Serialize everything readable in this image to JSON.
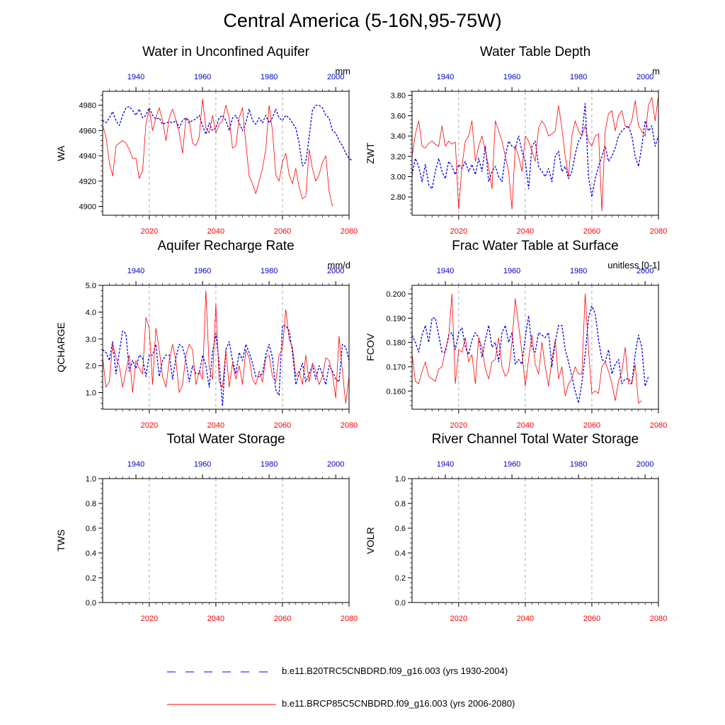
{
  "page": {
    "title": "Central America (5-16N,95-75W)"
  },
  "colors": {
    "historical": "#0000ee",
    "future": "#ff0000",
    "top_axis": "#0000cc",
    "bottom_axis": "#ff0000",
    "guide": "#999999"
  },
  "legend": {
    "items": [
      {
        "label": "b.e11.B20TRC5CNBDRD.f09_g16.003 (yrs 1930-2004)",
        "color": "#0000ee",
        "style": "dashed"
      },
      {
        "label": "b.e11.BRCP85C5CNBDRD.f09_g16.003 (yrs 2006-2080)",
        "color": "#ff0000",
        "style": "solid"
      }
    ]
  },
  "chart_data": [
    {
      "type": "line",
      "title": "Water in Unconfined Aquifer",
      "ylabel": "WA",
      "units": "mm",
      "xlim_bottom": [
        2006,
        2080
      ],
      "xlim_top": [
        1930,
        2004
      ],
      "ylim": [
        4893,
        4991
      ],
      "yticks": [
        4900,
        4920,
        4940,
        4960,
        4980
      ],
      "ytick_labels": [
        "4900",
        "4920",
        "4940",
        "4960",
        "4980"
      ],
      "xticks_bottom": [
        2020,
        2040,
        2060,
        2080
      ],
      "xticks_top": [
        1940,
        1960,
        1980,
        2000
      ],
      "guides": [
        2020,
        2040,
        2060
      ],
      "series": [
        {
          "role": "historical",
          "x_axis": "top",
          "x_start": 1930,
          "values": [
            4968,
            4966,
            4970,
            4975,
            4968,
            4964,
            4972,
            4978,
            4979,
            4976,
            4972,
            4977,
            4970,
            4972,
            4978,
            4972,
            4969,
            4970,
            4965,
            4966,
            4967,
            4966,
            4968,
            4962,
            4968,
            4970,
            4966,
            4968,
            4969,
            4972,
            4964,
            4957,
            4966,
            4960,
            4962,
            4970,
            4972,
            4968,
            4960,
            4970,
            4972,
            4966,
            4960,
            4966,
            4977,
            4968,
            4965,
            4970,
            4966,
            4972,
            4966,
            4970,
            4977,
            4970,
            4968,
            4972,
            4970,
            4966,
            4962,
            4950,
            4932,
            4935,
            4955,
            4976,
            4980,
            4980,
            4978,
            4972,
            4970,
            4960,
            4958,
            4952,
            4948,
            4942,
            4938,
            4936
          ]
        },
        {
          "role": "future",
          "x_axis": "bottom",
          "x_start": 2006,
          "values": [
            4964,
            4955,
            4935,
            4924,
            4948,
            4950,
            4952,
            4950,
            4945,
            4938,
            4938,
            4922,
            4928,
            4965,
            4977,
            4960,
            4970,
            4978,
            4968,
            4952,
            4970,
            4977,
            4968,
            4958,
            4942,
            4970,
            4968,
            4950,
            4948,
            4955,
            4985,
            4962,
            4958,
            4972,
            4958,
            4965,
            4968,
            4980,
            4970,
            4946,
            4948,
            4970,
            4978,
            4950,
            4924,
            4918,
            4910,
            4920,
            4930,
            4945,
            4980,
            4960,
            4925,
            4920,
            4935,
            4942,
            4925,
            4918,
            4930,
            4915,
            4906,
            4908,
            4945,
            4930,
            4920,
            4925,
            4935,
            4940,
            4912,
            4900
          ]
        }
      ]
    },
    {
      "type": "line",
      "title": "Water Table Depth",
      "ylabel": "ZWT",
      "units": "m",
      "xlim_bottom": [
        2006,
        2080
      ],
      "xlim_top": [
        1930,
        2004
      ],
      "ylim": [
        2.62,
        3.84
      ],
      "yticks": [
        2.8,
        3.0,
        3.2,
        3.4,
        3.6,
        3.8
      ],
      "ytick_labels": [
        "2.80",
        "3.00",
        "3.20",
        "3.40",
        "3.60",
        "3.80"
      ],
      "xticks_bottom": [
        2020,
        2040,
        2060,
        2080
      ],
      "xticks_top": [
        1940,
        1960,
        1980,
        2000
      ],
      "guides": [
        2020,
        2040,
        2060
      ],
      "series": [
        {
          "role": "historical",
          "x_axis": "top",
          "x_start": 1930,
          "values": [
            3.02,
            3.18,
            3.1,
            2.95,
            3.12,
            2.92,
            2.88,
            3.05,
            3.18,
            3.05,
            2.98,
            3.15,
            3.1,
            3.02,
            3.12,
            3.08,
            3.15,
            3.05,
            3.12,
            3.02,
            3.18,
            3.05,
            3.3,
            2.95,
            3.05,
            3.1,
            3.0,
            2.95,
            3.2,
            3.35,
            3.3,
            3.28,
            3.4,
            3.25,
            3.15,
            2.88,
            3.3,
            3.35,
            3.1,
            3.05,
            3.0,
            3.08,
            2.95,
            3.2,
            3.25,
            3.05,
            3.1,
            2.98,
            3.05,
            3.22,
            3.35,
            3.4,
            3.72,
            3.0,
            2.8,
            2.98,
            3.1,
            3.2,
            3.3,
            3.15,
            3.2,
            3.28,
            3.4,
            3.45,
            3.48,
            3.5,
            3.4,
            3.2,
            3.1,
            3.3,
            3.55,
            3.45,
            3.5,
            3.3,
            3.4
          ]
        },
        {
          "role": "future",
          "x_axis": "bottom",
          "x_start": 2006,
          "values": [
            3.2,
            3.42,
            3.55,
            3.3,
            3.28,
            3.33,
            3.35,
            3.32,
            3.3,
            3.5,
            3.3,
            3.35,
            3.32,
            3.34,
            2.68,
            3.1,
            3.35,
            3.4,
            3.55,
            3.15,
            3.3,
            3.4,
            3.25,
            3.1,
            2.88,
            3.55,
            3.45,
            3.35,
            3.2,
            3.05,
            2.68,
            3.3,
            3.2,
            3.05,
            3.4,
            3.35,
            3.25,
            3.15,
            3.48,
            3.55,
            3.5,
            3.4,
            3.42,
            3.45,
            3.7,
            3.48,
            3.2,
            3.0,
            3.4,
            3.55,
            3.45,
            3.4,
            3.5,
            3.35,
            3.3,
            3.4,
            3.42,
            2.66,
            3.45,
            3.62,
            3.65,
            3.45,
            3.6,
            3.65,
            3.5,
            3.48,
            3.55,
            3.75,
            3.5,
            3.45,
            3.4,
            3.7,
            3.78,
            3.55,
            3.8
          ]
        }
      ]
    },
    {
      "type": "line",
      "title": "Aquifer Recharge Rate",
      "ylabel": "QCHARGE",
      "units": "mm/d",
      "xlim_bottom": [
        2006,
        2080
      ],
      "xlim_top": [
        1930,
        2004
      ],
      "ylim": [
        0.38,
        5.0
      ],
      "yticks": [
        1.0,
        2.0,
        3.0,
        4.0,
        5.0
      ],
      "ytick_labels": [
        "1.0",
        "2.0",
        "3.0",
        "4.0",
        "5.0"
      ],
      "xticks_bottom": [
        2020,
        2040,
        2060,
        2080
      ],
      "xticks_top": [
        1940,
        1960,
        1980,
        2000
      ],
      "guides": [
        2020,
        2040,
        2060
      ],
      "series": [
        {
          "role": "historical",
          "x_axis": "top",
          "x_start": 1930,
          "values": [
            2.6,
            2.5,
            2.2,
            2.9,
            1.7,
            2.5,
            3.3,
            3.2,
            1.8,
            2.2,
            1.9,
            2.4,
            2.3,
            1.6,
            2.4,
            2.4,
            2.8,
            1.6,
            2.2,
            2.4,
            2.4,
            1.5,
            2.3,
            2.8,
            2.7,
            2.2,
            1.4,
            2.0,
            1.7,
            1.7,
            2.4,
            2.0,
            1.2,
            2.5,
            3.2,
            2.1,
            0.5,
            2.6,
            2.9,
            2.2,
            1.7,
            2.5,
            2.2,
            2.8,
            2.5,
            2.1,
            1.6,
            1.6,
            1.7,
            2.4,
            2.8,
            2.3,
            1.1,
            0.9,
            3.5,
            3.5,
            3.3,
            2.5,
            1.3,
            1.7,
            2.1,
            1.4,
            1.7,
            2.0,
            1.5,
            2.0,
            1.7,
            1.3,
            2.0,
            1.8,
            1.5,
            1.4,
            2.8,
            2.7,
            2.2
          ]
        },
        {
          "role": "future",
          "x_axis": "bottom",
          "x_start": 2006,
          "values": [
            2.3,
            1.2,
            1.4,
            2.8,
            2.3,
            2.0,
            1.2,
            1.8,
            2.4,
            1.0,
            2.2,
            1.9,
            1.7,
            3.8,
            3.4,
            1.3,
            3.4,
            2.6,
            1.6,
            1.2,
            2.2,
            2.8,
            2.2,
            1.0,
            1.3,
            2.4,
            2.8,
            2.6,
            1.3,
            1.8,
            1.5,
            4.8,
            1.9,
            1.5,
            4.3,
            1.4,
            1.2,
            2.6,
            1.2,
            2.1,
            1.5,
            2.0,
            1.3,
            2.6,
            2.3,
            1.5,
            1.3,
            1.8,
            1.4,
            2.3,
            2.4,
            1.6,
            1.4,
            2.4,
            2.6,
            4.1,
            3.0,
            2.7,
            1.6,
            1.8,
            1.3,
            2.4,
            1.4,
            2.1,
            1.8,
            1.3,
            1.6,
            2.3,
            2.2,
            1.7,
            0.8,
            3.1,
            1.8,
            0.6,
            1.6
          ]
        }
      ]
    },
    {
      "type": "line",
      "title": "Frac Water Table at Surface",
      "ylabel": "FCOV",
      "units": "unitless [0-1]",
      "xlim_bottom": [
        2006,
        2080
      ],
      "xlim_top": [
        1930,
        2004
      ],
      "ylim": [
        0.1525,
        0.2035
      ],
      "yticks": [
        0.16,
        0.17,
        0.18,
        0.19,
        0.2
      ],
      "ytick_labels": [
        "0.160",
        "0.170",
        "0.180",
        "0.190",
        "0.200"
      ],
      "xticks_bottom": [
        2020,
        2040,
        2060,
        2080
      ],
      "xticks_top": [
        1940,
        1960,
        1980,
        2000
      ],
      "guides": [
        2020,
        2040,
        2060
      ],
      "series": [
        {
          "role": "historical",
          "x_axis": "top",
          "x_start": 1930,
          "values": [
            0.183,
            0.18,
            0.176,
            0.183,
            0.187,
            0.18,
            0.19,
            0.19,
            0.183,
            0.176,
            0.176,
            0.183,
            0.184,
            0.177,
            0.184,
            0.186,
            0.178,
            0.175,
            0.181,
            0.184,
            0.182,
            0.174,
            0.181,
            0.187,
            0.178,
            0.18,
            0.172,
            0.184,
            0.187,
            0.18,
            0.184,
            0.171,
            0.173,
            0.171,
            0.182,
            0.191,
            0.178,
            0.176,
            0.184,
            0.183,
            0.182,
            0.184,
            0.17,
            0.18,
            0.187,
            0.187,
            0.177,
            0.172,
            0.166,
            0.16,
            0.155,
            0.163,
            0.175,
            0.19,
            0.195,
            0.192,
            0.181,
            0.173,
            0.172,
            0.177,
            0.167,
            0.171,
            0.173,
            0.163,
            0.165,
            0.165,
            0.163,
            0.175,
            0.183,
            0.178,
            0.162,
            0.166
          ]
        },
        {
          "role": "future",
          "x_axis": "bottom",
          "x_start": 2006,
          "values": [
            0.175,
            0.164,
            0.163,
            0.168,
            0.172,
            0.166,
            0.165,
            0.164,
            0.169,
            0.17,
            0.177,
            0.182,
            0.2,
            0.163,
            0.177,
            0.176,
            0.182,
            0.172,
            0.175,
            0.163,
            0.182,
            0.178,
            0.169,
            0.165,
            0.172,
            0.173,
            0.182,
            0.17,
            0.166,
            0.168,
            0.18,
            0.198,
            0.187,
            0.176,
            0.162,
            0.173,
            0.183,
            0.171,
            0.167,
            0.18,
            0.17,
            0.162,
            0.173,
            0.181,
            0.165,
            0.17,
            0.158,
            0.163,
            0.165,
            0.17,
            0.167,
            0.167,
            0.2,
            0.177,
            0.159,
            0.16,
            0.159,
            0.17,
            0.172,
            0.168,
            0.163,
            0.156,
            0.164,
            0.168,
            0.178,
            0.163,
            0.163,
            0.171,
            0.155,
            0.156
          ]
        }
      ]
    },
    {
      "type": "line",
      "title": "Total Water Storage",
      "ylabel": "TWS",
      "units": "",
      "xlim_bottom": [
        2006,
        2080
      ],
      "xlim_top": [
        1930,
        2004
      ],
      "ylim": [
        0.0,
        1.0
      ],
      "yticks": [
        0.0,
        0.2,
        0.4,
        0.6,
        0.8,
        1.0
      ],
      "ytick_labels": [
        "0.0",
        "0.2",
        "0.4",
        "0.6",
        "0.8",
        "1.0"
      ],
      "xticks_bottom": [
        2020,
        2040,
        2060,
        2080
      ],
      "xticks_top": [
        1940,
        1960,
        1980,
        2000
      ],
      "guides": [
        2020,
        2040,
        2060
      ],
      "series": []
    },
    {
      "type": "line",
      "title": "River Channel Total Water Storage",
      "ylabel": "VOLR",
      "units": "",
      "xlim_bottom": [
        2006,
        2080
      ],
      "xlim_top": [
        1930,
        2004
      ],
      "ylim": [
        0.0,
        1.0
      ],
      "yticks": [
        0.0,
        0.2,
        0.4,
        0.6,
        0.8,
        1.0
      ],
      "ytick_labels": [
        "0.0",
        "0.2",
        "0.4",
        "0.6",
        "0.8",
        "1.0"
      ],
      "xticks_bottom": [
        2020,
        2040,
        2060,
        2080
      ],
      "xticks_top": [
        1940,
        1960,
        1980,
        2000
      ],
      "guides": [
        2020,
        2040,
        2060
      ],
      "series": []
    }
  ]
}
